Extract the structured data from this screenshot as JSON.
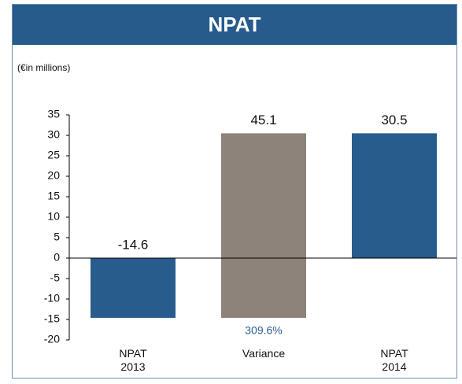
{
  "chart_data": {
    "type": "waterfall",
    "title": "NPAT",
    "subtitle": "(€in millions)",
    "categories": [
      "NPAT\n2013",
      "Variance",
      "NPAT\n2014"
    ],
    "values": [
      -14.6,
      45.1,
      30.5
    ],
    "measure": [
      "absolute",
      "relative",
      "absolute"
    ],
    "colors": [
      "#275c8d",
      "#8d837a",
      "#275c8d"
    ],
    "annotation": "309.6%",
    "ylim": [
      -20,
      35
    ],
    "yticks": [
      -20,
      -15,
      -10,
      -5,
      0,
      5,
      10,
      15,
      20,
      25,
      30,
      35
    ]
  }
}
